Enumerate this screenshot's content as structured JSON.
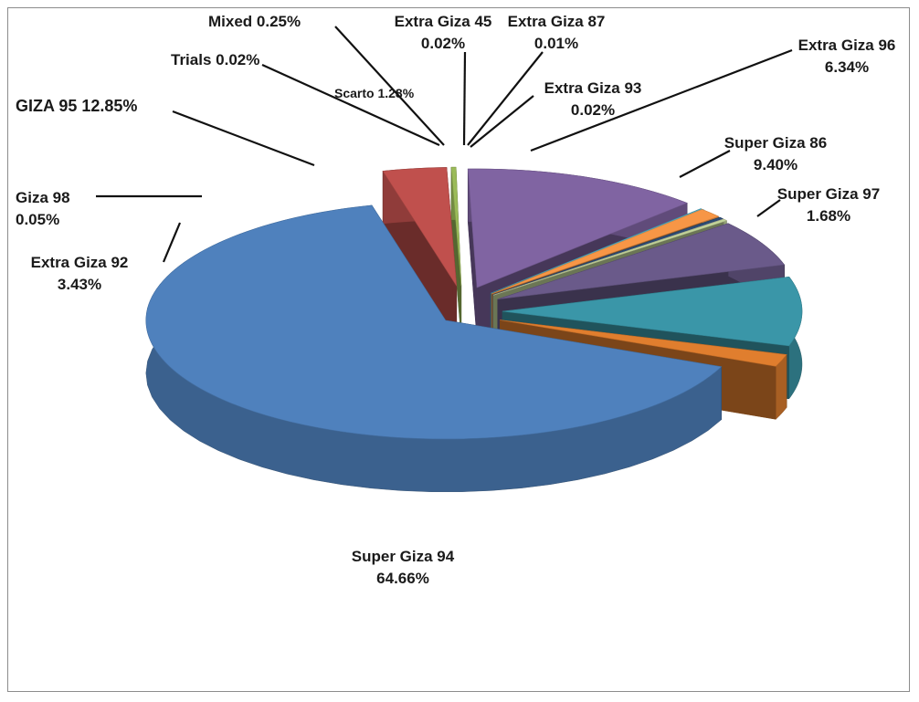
{
  "chart_data": {
    "type": "pie",
    "title": "",
    "legend": "none",
    "style": "3d-exploded",
    "slices": [
      {
        "name": "Super Giza 94",
        "value": 64.66,
        "label": "64.66%",
        "color": "#4f81bd"
      },
      {
        "name": "Extra Giza 92",
        "value": 3.43,
        "label": "3.43%",
        "color": "#c0504d"
      },
      {
        "name": "Giza 98",
        "value": 0.05,
        "label": "0.05%",
        "color": "#9bbb59"
      },
      {
        "name": "GIZA 95",
        "value": 12.85,
        "label": "12.85%",
        "color": "#8064a2"
      },
      {
        "name": "Trials",
        "value": 0.02,
        "label": "0.02%",
        "color": "#4bacc6"
      },
      {
        "name": "Scarto",
        "value": 1.28,
        "label": "1.28%",
        "color": "#f79646"
      },
      {
        "name": "Mixed",
        "value": 0.25,
        "label": "0.25%",
        "color": "#2c4d75"
      },
      {
        "name": "Extra Giza 45",
        "value": 0.02,
        "label": "0.02%",
        "color": "#a5b9dc"
      },
      {
        "name": "Extra Giza 87",
        "value": 0.01,
        "label": "0.01%",
        "color": "#d99694"
      },
      {
        "name": "Extra Giza 93",
        "value": 0.02,
        "label": "0.02%",
        "color": "#c3d69b"
      },
      {
        "name": "Extra Giza 96",
        "value": 6.34,
        "label": "6.34%",
        "color": "#6a5a8a"
      },
      {
        "name": "Super Giza 86",
        "value": 9.4,
        "label": "9.40%",
        "color": "#3a96a8"
      },
      {
        "name": "Super Giza 97",
        "value": 1.68,
        "label": "1.68%",
        "color": "#e07e2e"
      }
    ]
  }
}
